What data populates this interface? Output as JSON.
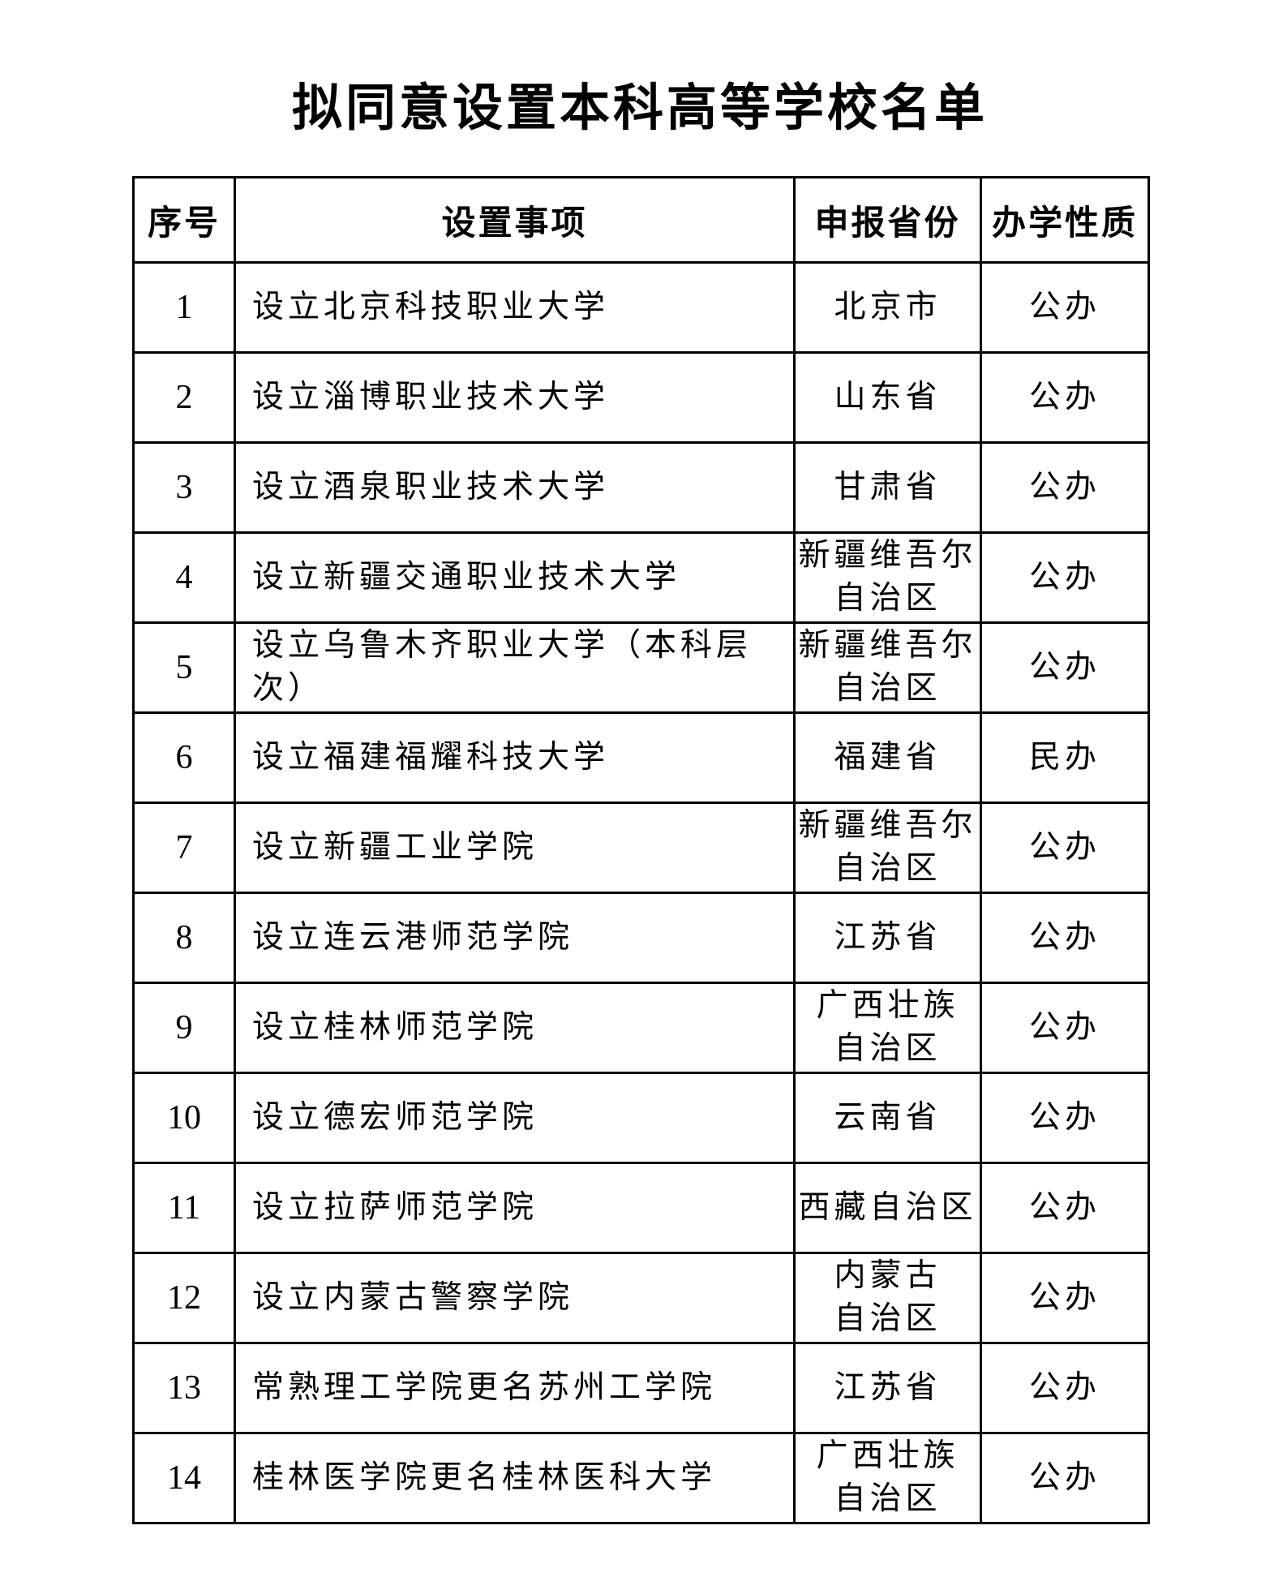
{
  "page": {
    "title": "拟同意设置本科高等学校名单"
  },
  "table": {
    "headers": [
      "序号",
      "设置事项",
      "申报省份",
      "办学性质"
    ],
    "rows": [
      {
        "no": "1",
        "matter": "设立北京科技职业大学",
        "province": "北京市",
        "nature": "公办"
      },
      {
        "no": "2",
        "matter": "设立淄博职业技术大学",
        "province": "山东省",
        "nature": "公办"
      },
      {
        "no": "3",
        "matter": "设立酒泉职业技术大学",
        "province": "甘肃省",
        "nature": "公办"
      },
      {
        "no": "4",
        "matter": "设立新疆交通职业技术大学",
        "province": "新疆维吾尔\n自治区",
        "nature": "公办"
      },
      {
        "no": "5",
        "matter": "设立乌鲁木齐职业大学（本科层次）",
        "province": "新疆维吾尔\n自治区",
        "nature": "公办"
      },
      {
        "no": "6",
        "matter": "设立福建福耀科技大学",
        "province": "福建省",
        "nature": "民办"
      },
      {
        "no": "7",
        "matter": "设立新疆工业学院",
        "province": "新疆维吾尔\n自治区",
        "nature": "公办"
      },
      {
        "no": "8",
        "matter": "设立连云港师范学院",
        "province": "江苏省",
        "nature": "公办"
      },
      {
        "no": "9",
        "matter": "设立桂林师范学院",
        "province": "广西壮族\n自治区",
        "nature": "公办"
      },
      {
        "no": "10",
        "matter": "设立德宏师范学院",
        "province": "云南省",
        "nature": "公办"
      },
      {
        "no": "11",
        "matter": "设立拉萨师范学院",
        "province": "西藏自治区",
        "nature": "公办"
      },
      {
        "no": "12",
        "matter": "设立内蒙古警察学院",
        "province": "内蒙古\n自治区",
        "nature": "公办"
      },
      {
        "no": "13",
        "matter": "常熟理工学院更名苏州工学院",
        "province": "江苏省",
        "nature": "公办"
      },
      {
        "no": "14",
        "matter": "桂林医学院更名桂林医科大学",
        "province": "广西壮族\n自治区",
        "nature": "公办"
      }
    ]
  }
}
